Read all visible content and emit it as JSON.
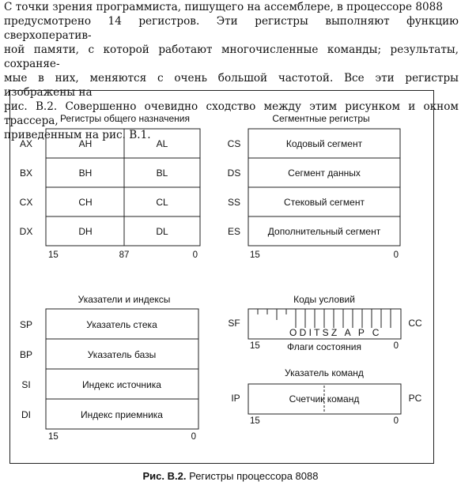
{
  "paragraph": {
    "line1": "С точки зрения программиста, пишущего на ассемблере, в процессоре 8088",
    "line2": "предусмотрено 14 регистров. Эти регистры выполняют функцию сверхоператив-",
    "line3": "ной памяти, с которой работают многочисленные команды; результаты, сохраняе-",
    "line4": "мые в них, меняются с очень большой частотой. Все эти регистры изображены на",
    "line5": "рис. В.2. Совершенно очевидно сходство между этим рисунком и окном трассера,",
    "line6": "приведенным на рис. В.1."
  },
  "figure": {
    "general": {
      "title": "Регистры общего назначения",
      "rows": [
        {
          "name": "AX",
          "high": "AH",
          "low": "AL"
        },
        {
          "name": "BX",
          "high": "BH",
          "low": "BL"
        },
        {
          "name": "CX",
          "high": "CH",
          "low": "CL"
        },
        {
          "name": "DX",
          "high": "DH",
          "low": "DL"
        }
      ],
      "bit_left": "15",
      "bit_mid": "87",
      "bit_right": "0"
    },
    "segment": {
      "title": "Сегментные регистры",
      "rows": [
        {
          "name": "CS",
          "label": "Кодовый сегмент"
        },
        {
          "name": "DS",
          "label": "Сегмент данных"
        },
        {
          "name": "SS",
          "label": "Стековый сегмент"
        },
        {
          "name": "ES",
          "label": "Дополнительный сегмент"
        }
      ],
      "bit_left": "15",
      "bit_right": "0"
    },
    "pointers": {
      "title": "Указатели и индексы",
      "rows": [
        {
          "name": "SP",
          "label": "Указатель стека"
        },
        {
          "name": "BP",
          "label": "Указатель базы"
        },
        {
          "name": "SI",
          "label": "Индекс источника"
        },
        {
          "name": "DI",
          "label": "Индекс приемника"
        }
      ],
      "bit_left": "15",
      "bit_right": "0"
    },
    "flags": {
      "title": "Коды условий",
      "left_label": "SF",
      "right_label": "CC",
      "letters": "O D I T S Z   A   P   C",
      "bit_left": "15",
      "bit_right": "0",
      "subtitle": "Флаги состояния"
    },
    "ip": {
      "title": "Указатель команд",
      "left_label": "IP",
      "right_label": "PC",
      "label": "Счетчик команд",
      "bit_left": "15",
      "bit_right": "0"
    }
  },
  "caption": {
    "number": "Рис. В.2.",
    "text": " Регистры процессора 8088"
  }
}
